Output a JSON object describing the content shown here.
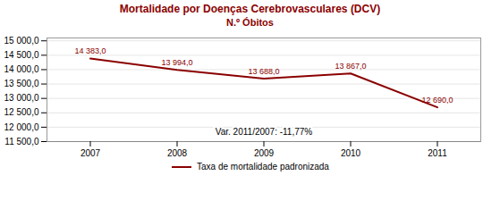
{
  "chart_data": {
    "type": "line",
    "title": "Mortalidade por Doenças Cerebrovasculares (DCV)",
    "subtitle": "N.º Óbitos",
    "x": [
      2007,
      2008,
      2009,
      2010,
      2011
    ],
    "series": [
      {
        "name": "Taxa de mortalidade padronizada",
        "color": "#8B0000",
        "values": [
          14383.0,
          13994.0,
          13688.0,
          13867.0,
          12690.0
        ],
        "value_labels": [
          "14 383,0",
          "13 994,0",
          "13 688,0",
          "13 867,0",
          "12 690,0"
        ]
      }
    ],
    "xlim": [
      2006.5,
      2011.5
    ],
    "xticks": [
      2007,
      2008,
      2009,
      2010,
      2011
    ],
    "ylim": [
      11500,
      15100
    ],
    "yticks": [
      {
        "value": 11500,
        "label": "11 500,0"
      },
      {
        "value": 12000,
        "label": "12 000,0"
      },
      {
        "value": 12500,
        "label": "12 500,0"
      },
      {
        "value": 13000,
        "label": "13 000,0"
      },
      {
        "value": 13500,
        "label": "13 500,0"
      },
      {
        "value": 14000,
        "label": "14 000,0"
      },
      {
        "value": 14500,
        "label": "14 500,0"
      },
      {
        "value": 15000,
        "label": "15 000,0"
      }
    ],
    "grid": true,
    "data_labels": true,
    "annotation": "Var. 2011/2007: -11,77%",
    "legend": "bottom"
  }
}
